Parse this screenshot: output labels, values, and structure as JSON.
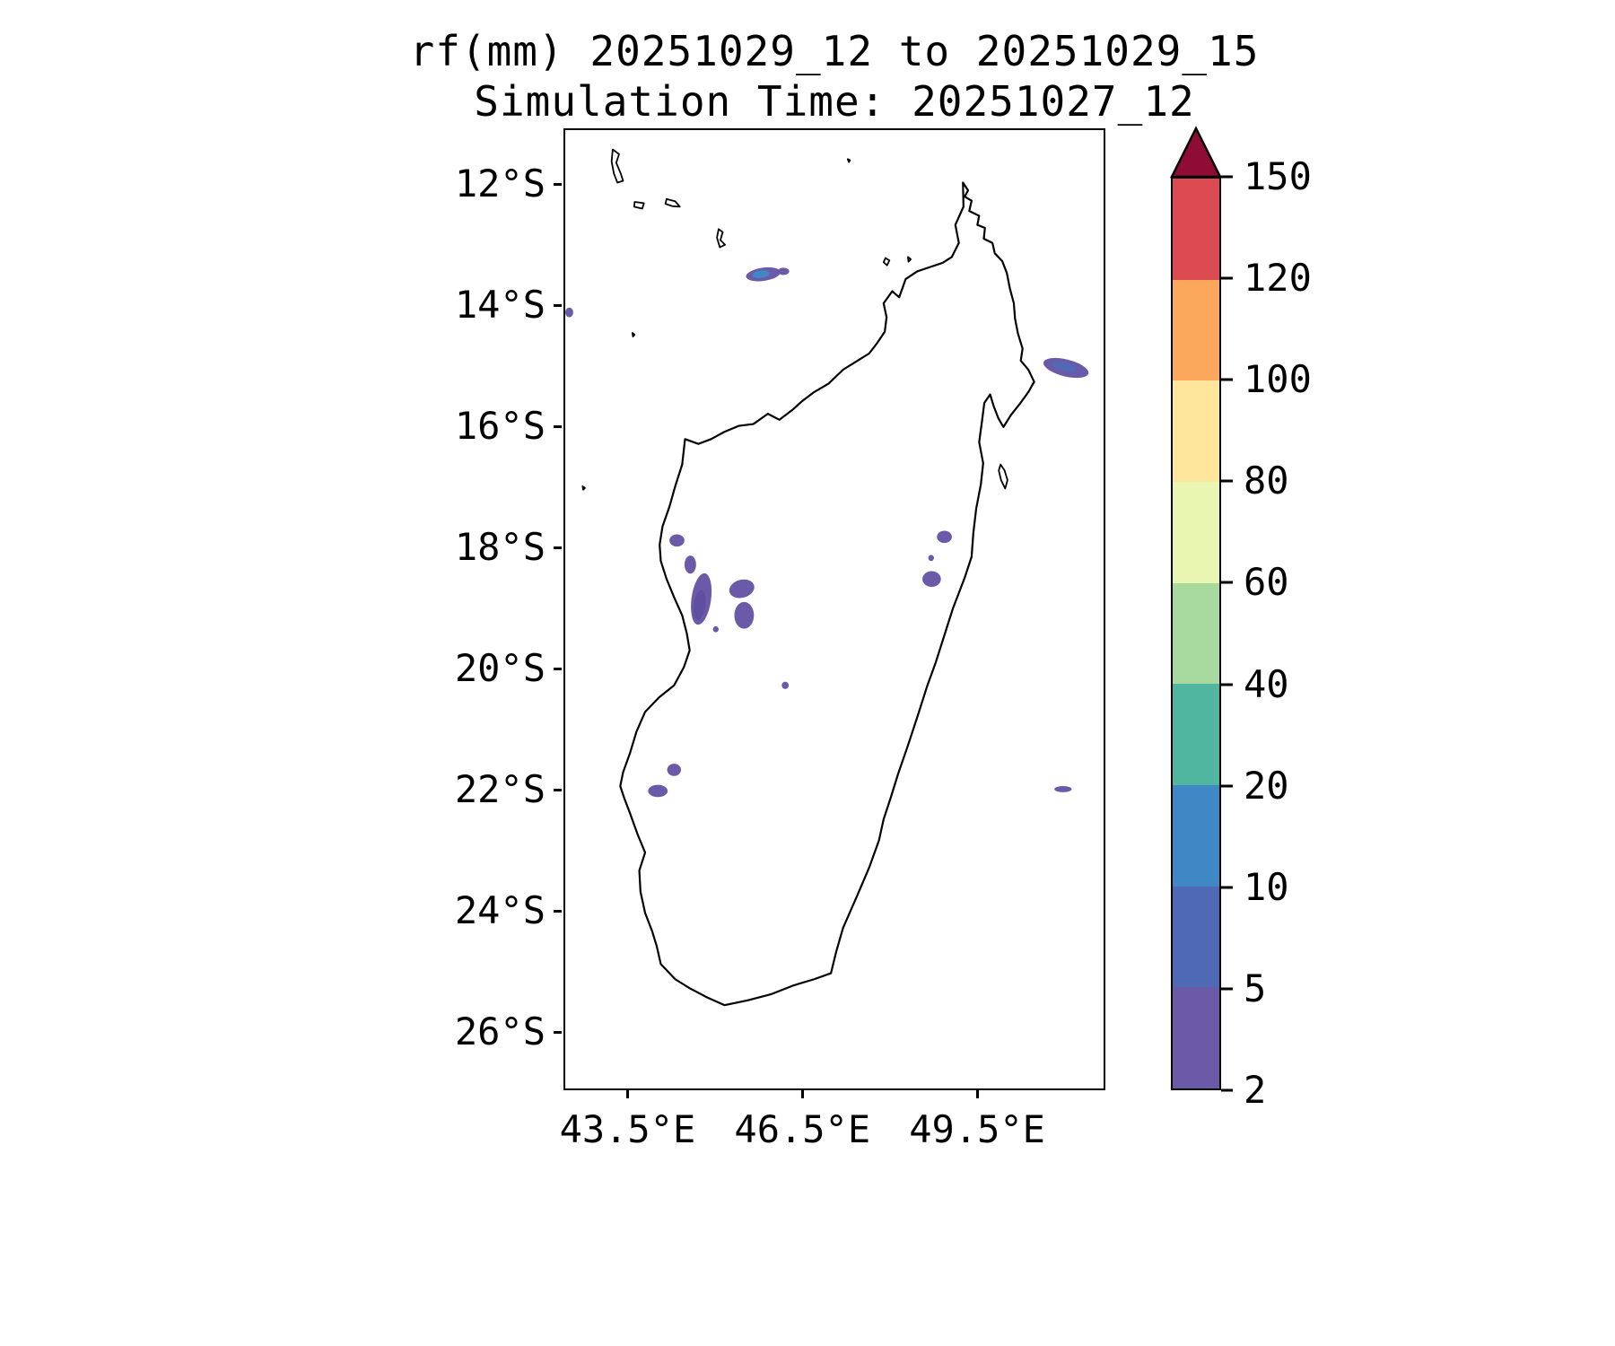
{
  "chart_data": {
    "type": "heatmap",
    "title": "rf(mm) 20251029_12 to 20251029_15",
    "subtitle": "Simulation Time: 20251027_12",
    "variable": "rf",
    "unit": "mm",
    "lon_range": [
      42.4,
      51.7
    ],
    "lat_range": [
      11.08,
      26.96
    ],
    "x_ticks": [
      {
        "label": "43.5°E",
        "lon": 43.5
      },
      {
        "label": "46.5°E",
        "lon": 46.5
      },
      {
        "label": "49.5°E",
        "lon": 49.5
      }
    ],
    "y_ticks": [
      {
        "label": "12°S",
        "lat": 12
      },
      {
        "label": "14°S",
        "lat": 14
      },
      {
        "label": "16°S",
        "lat": 16
      },
      {
        "label": "18°S",
        "lat": 18
      },
      {
        "label": "20°S",
        "lat": 20
      },
      {
        "label": "22°S",
        "lat": 22
      },
      {
        "label": "24°S",
        "lat": 24
      },
      {
        "label": "26°S",
        "lat": 26
      }
    ],
    "colorbar": {
      "levels": [
        2,
        5,
        10,
        20,
        40,
        60,
        80,
        100,
        120,
        150
      ],
      "colors": [
        "#6a5aa8",
        "#5069b5",
        "#3f88c5",
        "#50b69f",
        "#a8daa0",
        "#e9f6b1",
        "#fee79c",
        "#fba85c",
        "#dc4a52"
      ],
      "extend_color": "#8e0c36",
      "legend_position": "right"
    },
    "coastline": [
      [
        49.27,
        11.95
      ],
      [
        49.36,
        12.08
      ],
      [
        49.3,
        12.18
      ],
      [
        49.42,
        12.25
      ],
      [
        49.38,
        12.42
      ],
      [
        49.55,
        12.5
      ],
      [
        49.52,
        12.65
      ],
      [
        49.65,
        12.7
      ],
      [
        49.63,
        12.88
      ],
      [
        49.78,
        12.95
      ],
      [
        49.82,
        13.12
      ],
      [
        49.95,
        13.25
      ],
      [
        50.03,
        13.45
      ],
      [
        50.08,
        13.7
      ],
      [
        50.15,
        13.95
      ],
      [
        50.17,
        14.2
      ],
      [
        50.22,
        14.45
      ],
      [
        50.3,
        14.7
      ],
      [
        50.27,
        14.9
      ],
      [
        50.4,
        15.05
      ],
      [
        50.5,
        15.25
      ],
      [
        50.4,
        15.42
      ],
      [
        50.25,
        15.62
      ],
      [
        50.1,
        15.8
      ],
      [
        49.97,
        16.0
      ],
      [
        49.88,
        15.85
      ],
      [
        49.8,
        15.65
      ],
      [
        49.74,
        15.46
      ],
      [
        49.64,
        15.6
      ],
      [
        49.6,
        15.9
      ],
      [
        49.55,
        16.25
      ],
      [
        49.62,
        16.6
      ],
      [
        49.58,
        16.95
      ],
      [
        49.5,
        17.35
      ],
      [
        49.45,
        17.75
      ],
      [
        49.42,
        18.15
      ],
      [
        49.3,
        18.5
      ],
      [
        49.1,
        19.0
      ],
      [
        48.95,
        19.45
      ],
      [
        48.8,
        19.9
      ],
      [
        48.65,
        20.3
      ],
      [
        48.5,
        20.75
      ],
      [
        48.33,
        21.25
      ],
      [
        48.15,
        21.75
      ],
      [
        48.02,
        22.15
      ],
      [
        47.9,
        22.5
      ],
      [
        47.82,
        22.85
      ],
      [
        47.65,
        23.3
      ],
      [
        47.45,
        23.75
      ],
      [
        47.2,
        24.3
      ],
      [
        47.08,
        24.7
      ],
      [
        46.99,
        25.05
      ],
      [
        46.7,
        25.15
      ],
      [
        46.35,
        25.25
      ],
      [
        45.95,
        25.4
      ],
      [
        45.55,
        25.5
      ],
      [
        45.15,
        25.58
      ],
      [
        44.85,
        25.45
      ],
      [
        44.55,
        25.3
      ],
      [
        44.3,
        25.15
      ],
      [
        44.05,
        24.9
      ],
      [
        43.98,
        24.6
      ],
      [
        43.9,
        24.35
      ],
      [
        43.78,
        24.05
      ],
      [
        43.7,
        23.7
      ],
      [
        43.68,
        23.35
      ],
      [
        43.78,
        23.05
      ],
      [
        43.65,
        22.75
      ],
      [
        43.52,
        22.4
      ],
      [
        43.42,
        22.15
      ],
      [
        43.35,
        21.95
      ],
      [
        43.4,
        21.72
      ],
      [
        43.52,
        21.4
      ],
      [
        43.63,
        21.05
      ],
      [
        43.78,
        20.72
      ],
      [
        44.02,
        20.48
      ],
      [
        44.28,
        20.28
      ],
      [
        44.45,
        19.98
      ],
      [
        44.55,
        19.7
      ],
      [
        44.5,
        19.42
      ],
      [
        44.42,
        19.12
      ],
      [
        44.28,
        18.82
      ],
      [
        44.15,
        18.52
      ],
      [
        44.05,
        18.22
      ],
      [
        44.03,
        17.95
      ],
      [
        44.08,
        17.65
      ],
      [
        44.2,
        17.32
      ],
      [
        44.3,
        16.98
      ],
      [
        44.42,
        16.62
      ],
      [
        44.47,
        16.2
      ],
      [
        44.7,
        16.28
      ],
      [
        44.92,
        16.2
      ],
      [
        45.15,
        16.08
      ],
      [
        45.4,
        15.98
      ],
      [
        45.65,
        15.95
      ],
      [
        45.9,
        15.78
      ],
      [
        46.1,
        15.88
      ],
      [
        46.32,
        15.72
      ],
      [
        46.48,
        15.58
      ],
      [
        46.7,
        15.42
      ],
      [
        46.95,
        15.28
      ],
      [
        47.2,
        15.05
      ],
      [
        47.45,
        14.9
      ],
      [
        47.65,
        14.78
      ],
      [
        47.78,
        14.62
      ],
      [
        47.92,
        14.42
      ],
      [
        47.95,
        14.18
      ],
      [
        47.9,
        13.95
      ],
      [
        48.05,
        13.75
      ],
      [
        48.17,
        13.85
      ],
      [
        48.28,
        13.55
      ],
      [
        48.48,
        13.42
      ],
      [
        48.7,
        13.35
      ],
      [
        48.92,
        13.28
      ],
      [
        49.08,
        13.18
      ],
      [
        49.2,
        12.95
      ],
      [
        49.14,
        12.65
      ],
      [
        49.28,
        12.35
      ],
      [
        49.27,
        11.95
      ]
    ],
    "islands": [
      [
        [
          43.22,
          11.4
        ],
        [
          43.33,
          11.48
        ],
        [
          43.28,
          11.62
        ],
        [
          43.36,
          11.8
        ],
        [
          43.4,
          11.92
        ],
        [
          43.3,
          11.95
        ],
        [
          43.24,
          11.8
        ],
        [
          43.2,
          11.6
        ]
      ],
      [
        [
          43.6,
          12.27
        ],
        [
          43.76,
          12.29
        ],
        [
          43.73,
          12.38
        ],
        [
          43.59,
          12.35
        ]
      ],
      [
        [
          44.15,
          12.22
        ],
        [
          44.3,
          12.26
        ],
        [
          44.38,
          12.35
        ],
        [
          44.25,
          12.34
        ],
        [
          44.13,
          12.3
        ]
      ],
      [
        [
          45.05,
          12.72
        ],
        [
          45.12,
          12.77
        ],
        [
          45.08,
          12.9
        ],
        [
          45.16,
          12.98
        ],
        [
          45.07,
          13.02
        ],
        [
          45.02,
          12.86
        ]
      ],
      [
        [
          47.28,
          11.56
        ],
        [
          47.32,
          11.58
        ],
        [
          47.3,
          11.61
        ]
      ],
      [
        [
          47.93,
          13.2
        ],
        [
          48.0,
          13.24
        ],
        [
          47.96,
          13.32
        ],
        [
          47.9,
          13.27
        ]
      ],
      [
        [
          48.32,
          13.18
        ],
        [
          48.37,
          13.22
        ],
        [
          48.33,
          13.26
        ]
      ],
      [
        [
          49.92,
          16.62
        ],
        [
          49.99,
          16.72
        ],
        [
          50.04,
          16.88
        ],
        [
          50.0,
          17.02
        ],
        [
          49.93,
          16.88
        ],
        [
          49.89,
          16.72
        ]
      ],
      [
        [
          43.56,
          14.44
        ],
        [
          43.6,
          14.47
        ],
        [
          43.57,
          14.5
        ]
      ],
      [
        [
          42.7,
          16.98
        ],
        [
          42.74,
          17.01
        ],
        [
          42.71,
          17.04
        ]
      ]
    ],
    "rain_patches": [
      {
        "lon": 45.82,
        "lat": 13.47,
        "rx": 0.3,
        "ry": 0.11,
        "rot": -8,
        "color": "#6a5aa8",
        "level": "2-5"
      },
      {
        "lon": 45.78,
        "lat": 13.47,
        "rx": 0.15,
        "ry": 0.06,
        "rot": -8,
        "color": "#3f88c5",
        "level": "10-20"
      },
      {
        "lon": 46.17,
        "lat": 13.42,
        "rx": 0.1,
        "ry": 0.06,
        "rot": 0,
        "color": "#6a5aa8",
        "level": "2-5"
      },
      {
        "lon": 42.47,
        "lat": 14.1,
        "rx": 0.07,
        "ry": 0.08,
        "rot": 0,
        "color": "#6a5aa8",
        "level": "2-5"
      },
      {
        "lon": 51.05,
        "lat": 15.02,
        "rx": 0.4,
        "ry": 0.14,
        "rot": 14,
        "color": "#6a5aa8",
        "level": "2-5"
      },
      {
        "lon": 51.02,
        "lat": 15.0,
        "rx": 0.22,
        "ry": 0.07,
        "rot": 14,
        "color": "#5069b5",
        "level": "5-10"
      },
      {
        "lon": 44.33,
        "lat": 17.88,
        "rx": 0.13,
        "ry": 0.1,
        "rot": 0,
        "color": "#6a5aa8",
        "level": "2-5"
      },
      {
        "lon": 44.56,
        "lat": 18.28,
        "rx": 0.1,
        "ry": 0.15,
        "rot": 0,
        "color": "#6a5aa8",
        "level": "2-5"
      },
      {
        "lon": 44.75,
        "lat": 18.85,
        "rx": 0.17,
        "ry": 0.43,
        "rot": 8,
        "color": "#6a5aa8",
        "level": "2-5"
      },
      {
        "lon": 44.72,
        "lat": 18.95,
        "rx": 0.1,
        "ry": 0.25,
        "rot": 8,
        "color": "#5e4fa0",
        "level": "2-5"
      },
      {
        "lon": 45.45,
        "lat": 18.68,
        "rx": 0.22,
        "ry": 0.15,
        "rot": -15,
        "color": "#6a5aa8",
        "level": "2-5"
      },
      {
        "lon": 45.49,
        "lat": 19.12,
        "rx": 0.17,
        "ry": 0.22,
        "rot": 0,
        "color": "#6a5aa8",
        "level": "2-5"
      },
      {
        "lon": 45.0,
        "lat": 19.35,
        "rx": 0.05,
        "ry": 0.05,
        "rot": 0,
        "color": "#6a5aa8",
        "level": "2-5"
      },
      {
        "lon": 48.95,
        "lat": 17.82,
        "rx": 0.13,
        "ry": 0.1,
        "rot": 0,
        "color": "#6a5aa8",
        "level": "2-5"
      },
      {
        "lon": 48.72,
        "lat": 18.17,
        "rx": 0.05,
        "ry": 0.05,
        "rot": 0,
        "color": "#6a5aa8",
        "level": "2-5"
      },
      {
        "lon": 48.73,
        "lat": 18.52,
        "rx": 0.16,
        "ry": 0.13,
        "rot": 0,
        "color": "#6a5aa8",
        "level": "2-5"
      },
      {
        "lon": 46.2,
        "lat": 20.28,
        "rx": 0.06,
        "ry": 0.06,
        "rot": 0,
        "color": "#6a5aa8",
        "level": "2-5"
      },
      {
        "lon": 44.28,
        "lat": 21.68,
        "rx": 0.12,
        "ry": 0.1,
        "rot": 0,
        "color": "#6a5aa8",
        "level": "2-5"
      },
      {
        "lon": 44.0,
        "lat": 22.03,
        "rx": 0.17,
        "ry": 0.1,
        "rot": 0,
        "color": "#6a5aa8",
        "level": "2-5"
      },
      {
        "lon": 51.0,
        "lat": 22.0,
        "rx": 0.15,
        "ry": 0.05,
        "rot": 0,
        "color": "#6a5aa8",
        "level": "2-5"
      }
    ]
  }
}
